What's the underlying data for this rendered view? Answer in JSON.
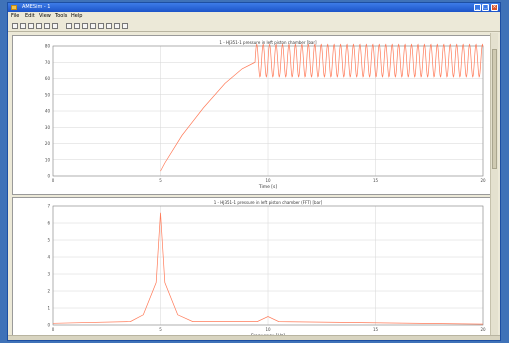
{
  "window": {
    "title": "AMESim - 1"
  },
  "menu": [
    "File",
    "Edit",
    "View",
    "Tools",
    "Help"
  ],
  "toolbar_icons": [
    "zoom-in-icon",
    "zoom-out-icon",
    "zoom-fit-icon",
    "zoom-box-icon",
    "pan-icon",
    "cursor-icon",
    "arrow-icon",
    "grid-icon",
    "copy-icon",
    "print-icon",
    "export-icon",
    "settings-icon",
    "legend-icon",
    "help-icon"
  ],
  "colors": {
    "curve": "#ff7a58",
    "grid": "#d6d6d6",
    "titlebar": "#2a63d6"
  },
  "chart_data": [
    {
      "type": "line",
      "title": "1 - HJ351-1 pressure in left piston chamber [bar]",
      "xlabel": "Time [s]",
      "ylabel": "",
      "xlim": [
        0,
        20
      ],
      "ylim": [
        0,
        80
      ],
      "xticks": [
        "0",
        "5",
        "10",
        "15",
        "20"
      ],
      "yticks": [
        "0",
        "10",
        "20",
        "30",
        "40",
        "50",
        "60",
        "70",
        "80"
      ],
      "grid": true,
      "series": [
        {
          "name": "",
          "x": [
            5.0,
            5.2,
            6.0,
            7.0,
            8.0,
            8.8,
            9.4
          ],
          "y": [
            3,
            8,
            25,
            42,
            57,
            66,
            70
          ],
          "oscillation": {
            "start": 9.4,
            "end": 20,
            "mean": 71,
            "amplitude": 10,
            "period": 0.3
          }
        }
      ]
    },
    {
      "type": "line",
      "title": "1 - HJ351-1 pressure in left piston chamber (FFT) [bar]",
      "xlabel": "Frequency [Hz]",
      "ylabel": "",
      "xlim": [
        0,
        20
      ],
      "ylim": [
        0,
        7
      ],
      "xticks": [
        "0",
        "5",
        "10",
        "15",
        "20"
      ],
      "yticks": [
        "0",
        "1",
        "2",
        "3",
        "4",
        "5",
        "6",
        "7"
      ],
      "grid": true,
      "series": [
        {
          "name": "",
          "x": [
            0,
            3.6,
            4.2,
            4.8,
            5.0,
            5.2,
            5.8,
            6.5,
            9.5,
            10.0,
            10.5,
            20
          ],
          "y": [
            0.1,
            0.2,
            0.6,
            2.5,
            6.6,
            2.5,
            0.6,
            0.2,
            0.2,
            0.5,
            0.2,
            0.05
          ]
        }
      ]
    }
  ]
}
